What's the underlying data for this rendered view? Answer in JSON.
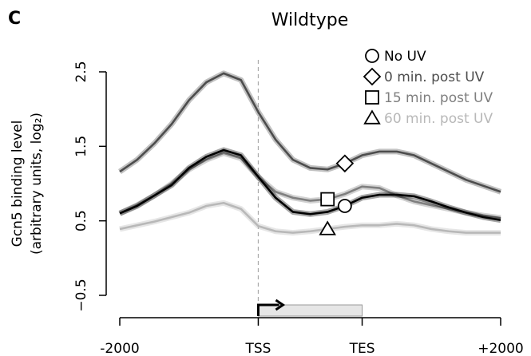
{
  "chart_data": {
    "type": "line",
    "panel_label": "C",
    "title": "Wildtype",
    "ylabel": [
      "Gcn5 binding level",
      "(arbitrary units, log₂)"
    ],
    "x": [
      -2000,
      -1750,
      -1500,
      -1250,
      -1000,
      -750,
      -500,
      -250,
      0,
      250,
      500,
      750,
      1000,
      1250,
      1500,
      1750,
      2000,
      2250,
      2500,
      2750,
      3000,
      3250,
      3500
    ],
    "xlim": [
      -2000,
      3500
    ],
    "xticks": [
      -2000,
      {
        "value": 0,
        "label": "TSS"
      },
      {
        "value": 1500,
        "label": "TES"
      },
      {
        "value": 3500,
        "label": "+2000"
      }
    ],
    "ylim": [
      -0.5,
      2.5
    ],
    "yticks": [
      {
        "value": -0.5,
        "label": "−0.5"
      },
      0.5,
      1.5,
      2.5
    ],
    "series": [
      {
        "name": "No UV",
        "color": "#000000",
        "marker": "circle",
        "values": [
          0.6,
          0.7,
          0.84,
          0.98,
          1.21,
          1.36,
          1.45,
          1.38,
          1.09,
          0.81,
          0.62,
          0.59,
          0.62,
          0.7,
          0.81,
          0.85,
          0.85,
          0.83,
          0.76,
          0.68,
          0.61,
          0.55,
          0.51
        ]
      },
      {
        "name": "0 min. post UV",
        "color": "#4d4d4d",
        "marker": "diamond",
        "values": [
          1.16,
          1.32,
          1.54,
          1.8,
          2.12,
          2.36,
          2.48,
          2.39,
          1.96,
          1.59,
          1.32,
          1.21,
          1.19,
          1.27,
          1.38,
          1.43,
          1.43,
          1.38,
          1.27,
          1.16,
          1.05,
          0.97,
          0.89
        ]
      },
      {
        "name": "15 min. post UV",
        "color": "#7f7f7f",
        "marker": "square",
        "values": [
          0.6,
          0.71,
          0.84,
          1.0,
          1.19,
          1.32,
          1.41,
          1.34,
          1.09,
          0.89,
          0.81,
          0.77,
          0.79,
          0.86,
          0.96,
          0.94,
          0.84,
          0.76,
          0.71,
          0.66,
          0.61,
          0.57,
          0.54
        ]
      },
      {
        "name": "60 min. post UV",
        "color": "#b8b8b8",
        "marker": "triangle",
        "values": [
          0.39,
          0.44,
          0.49,
          0.55,
          0.61,
          0.7,
          0.74,
          0.66,
          0.43,
          0.36,
          0.34,
          0.36,
          0.39,
          0.42,
          0.44,
          0.44,
          0.46,
          0.44,
          0.39,
          0.36,
          0.34,
          0.34,
          0.34
        ]
      }
    ]
  }
}
